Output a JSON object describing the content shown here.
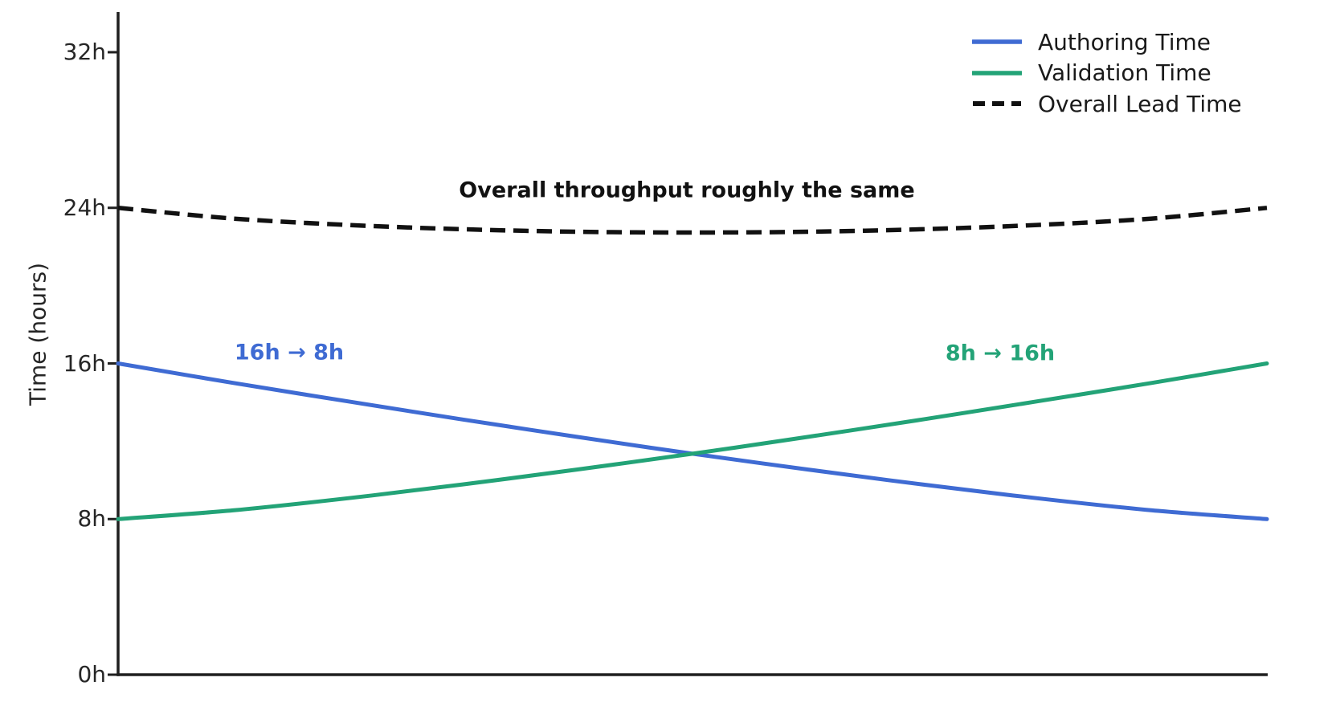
{
  "chart_data": {
    "type": "line",
    "title": "",
    "xlabel": "",
    "ylabel": "Time (hours)",
    "ylim": [
      0,
      34
    ],
    "grid": false,
    "legend_position": "upper right",
    "axis_color": "#1f1f1f",
    "yticks": [
      {
        "label": "0h",
        "value": 0
      },
      {
        "label": "8h",
        "value": 8
      },
      {
        "label": "16h",
        "value": 16
      },
      {
        "label": "24h",
        "value": 24
      },
      {
        "label": "32h",
        "value": 32
      }
    ],
    "x": [
      0,
      0.1,
      0.2,
      0.3,
      0.4,
      0.5,
      0.6,
      0.7,
      0.8,
      0.9,
      1.0
    ],
    "series": [
      {
        "name": "Authoring Time",
        "color": "#3F6BD3",
        "style": "solid",
        "values": [
          16,
          15.0,
          14.05,
          13.12,
          12.22,
          11.36,
          10.55,
          9.78,
          9.07,
          8.45,
          8
        ]
      },
      {
        "name": "Validation Time",
        "color": "#23A377",
        "style": "solid",
        "values": [
          8,
          8.45,
          9.07,
          9.78,
          10.55,
          11.36,
          12.22,
          13.12,
          14.05,
          15.0,
          16
        ]
      },
      {
        "name": "Overall Lead Time",
        "color": "#111111",
        "style": "dashed",
        "values": [
          24,
          23.45,
          23.12,
          22.9,
          22.77,
          22.73,
          22.77,
          22.9,
          23.12,
          23.45,
          24
        ]
      }
    ],
    "annotations": [
      {
        "id": "lead",
        "text": "Overall throughput roughly the same",
        "color": "#111111"
      },
      {
        "id": "authoring",
        "text": "16h → 8h",
        "color": "#3F6BD3"
      },
      {
        "id": "validation",
        "text": "8h → 16h",
        "color": "#23A377"
      }
    ]
  }
}
